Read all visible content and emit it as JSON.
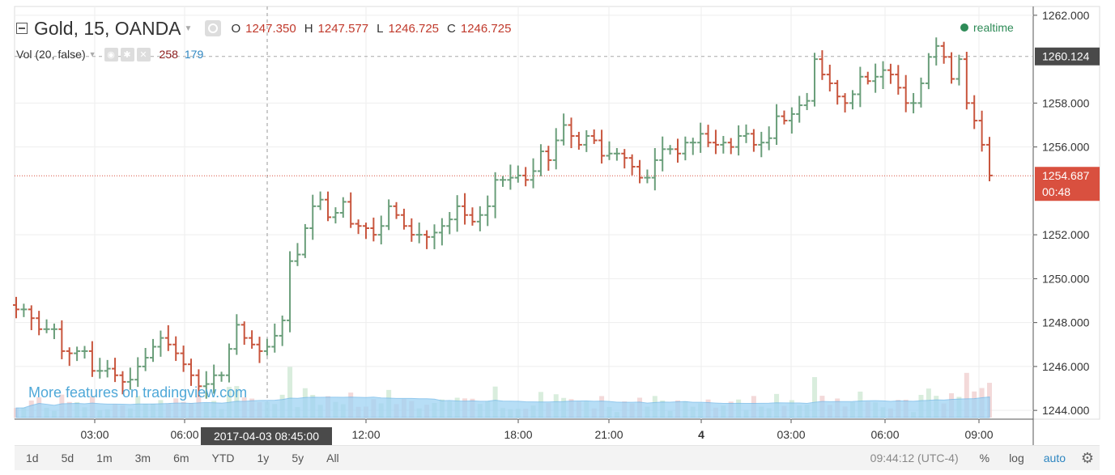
{
  "header": {
    "symbol": "Gold, 15, OANDA",
    "ohlc": {
      "o_label": "O",
      "o": "1247.350",
      "h_label": "H",
      "h": "1247.577",
      "l_label": "L",
      "l": "1246.725",
      "c_label": "C",
      "c": "1246.725"
    }
  },
  "volume_legend": {
    "label": "Vol (20, false)",
    "v1": "258",
    "v2": "179"
  },
  "status": {
    "realtime": "realtime"
  },
  "watermark": "More features on tradingview.com",
  "price_axis": {
    "ticks": [
      "1262.000",
      "1260.124",
      "1258.000",
      "1256.000",
      "1254.687",
      "1252.000",
      "1250.000",
      "1248.000",
      "1246.000",
      "1244.000"
    ],
    "tick_values": [
      1262,
      1258,
      1256,
      1252,
      1250,
      1248,
      1246,
      1244
    ],
    "tick_labels": [
      "1262.000",
      "1258.000",
      "1256.000",
      "1252.000",
      "1250.000",
      "1248.000",
      "1246.000",
      "1244.000"
    ],
    "high_marker": {
      "value": 1260.124,
      "label": "1260.124"
    },
    "last_marker": {
      "value": 1254.687,
      "label": "1254.687",
      "countdown": "00:48"
    }
  },
  "time_axis": {
    "labels": [
      "03:00",
      "06:00",
      "12:00",
      "18:00",
      "21:00",
      "4",
      "03:00",
      "06:00",
      "09:00"
    ],
    "crosshair_label": "2017-04-03 08:45:00"
  },
  "toolbar": {
    "timeframes": [
      "1d",
      "5d",
      "1m",
      "3m",
      "6m",
      "YTD",
      "1y",
      "5y",
      "All"
    ],
    "clock": "09:44:12 (UTC-4)",
    "percent": "%",
    "log": "log",
    "auto": "auto"
  },
  "colors": {
    "up": "#6a9e7a",
    "down": "#c8553d",
    "grid": "#eeeeee",
    "axis_marker_dark": "#4a4a4a",
    "axis_marker_red": "#d9503f",
    "vol_ma": "#9fd3f4"
  },
  "chart_data": {
    "type": "ohlc",
    "title": "Gold, 15, OANDA",
    "ylim": [
      1243.6,
      1262.4
    ],
    "bars_close": [
      1248.6,
      1248.6,
      1248.2,
      1247.7,
      1247.7,
      1247.7,
      1246.7,
      1246.6,
      1246.7,
      1246.7,
      1245.8,
      1245.8,
      1245.9,
      1245.6,
      1245.3,
      1245.4,
      1246.0,
      1246.4,
      1246.9,
      1247.3,
      1247.0,
      1246.6,
      1246.1,
      1245.6,
      1245.1,
      1245.2,
      1245.6,
      1245.6,
      1246.8,
      1247.9,
      1247.3,
      1247.0,
      1246.7,
      1246.9,
      1247.4,
      1248.1,
      1250.8,
      1251.1,
      1252.3,
      1253.3,
      1253.6,
      1252.8,
      1253.0,
      1253.5,
      1252.5,
      1252.4,
      1252.3,
      1252.0,
      1252.4,
      1253.3,
      1252.9,
      1252.4,
      1252.0,
      1252.0,
      1251.9,
      1252.1,
      1252.4,
      1252.7,
      1253.3,
      1252.9,
      1252.6,
      1252.9,
      1253.3,
      1254.5,
      1254.5,
      1254.6,
      1254.7,
      1254.5,
      1254.9,
      1255.8,
      1255.4,
      1256.3,
      1257.0,
      1256.5,
      1256.1,
      1256.5,
      1256.3,
      1255.6,
      1255.7,
      1255.7,
      1255.5,
      1255.1,
      1254.6,
      1254.6,
      1255.4,
      1255.9,
      1255.9,
      1255.7,
      1256.2,
      1256.2,
      1256.6,
      1256.2,
      1256.1,
      1256.2,
      1256.0,
      1256.5,
      1256.6,
      1256.1,
      1256.2,
      1256.4,
      1257.4,
      1257.2,
      1257.5,
      1257.9,
      1258.1,
      1260.0,
      1259.3,
      1258.9,
      1258.3,
      1258.0,
      1258.4,
      1259.2,
      1259.0,
      1259.2,
      1259.5,
      1259.3,
      1258.7,
      1258.0,
      1258.0,
      1258.9,
      1260.1,
      1260.6,
      1260.1,
      1259.1,
      1260.0,
      1258.0,
      1257.2,
      1256.1,
      1254.7
    ],
    "volume_note": "relative volume bars with 20-period moving average"
  }
}
